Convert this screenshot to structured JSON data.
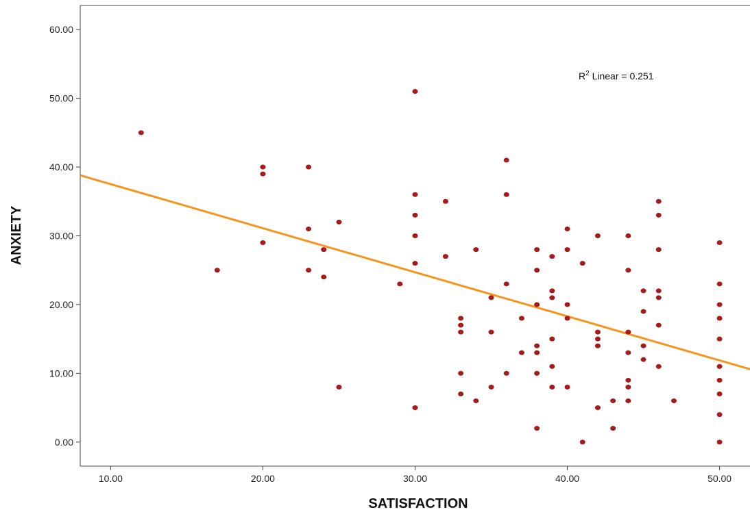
{
  "chart_data": {
    "type": "scatter",
    "xlabel": "SATISFACTION",
    "ylabel": "ANXIETY",
    "xlim": [
      8,
      52
    ],
    "ylim": [
      -3.5,
      63.5
    ],
    "x_ticks": [
      "10.00",
      "20.00",
      "30.00",
      "40.00",
      "50.00"
    ],
    "y_ticks": [
      "0.00",
      "10.00",
      "20.00",
      "30.00",
      "40.00",
      "50.00",
      "60.00"
    ],
    "annotation": {
      "prefix": "R",
      "sup": "2",
      "suffix": " Linear = 0.251"
    },
    "fit_line": {
      "x": [
        8,
        52
      ],
      "y": [
        38.8,
        10.6
      ]
    },
    "points": [
      [
        12,
        45
      ],
      [
        17,
        25
      ],
      [
        20,
        40
      ],
      [
        20,
        39
      ],
      [
        20,
        29
      ],
      [
        23,
        40
      ],
      [
        23,
        31
      ],
      [
        23,
        25
      ],
      [
        24,
        28
      ],
      [
        24,
        24
      ],
      [
        25,
        32
      ],
      [
        25,
        8
      ],
      [
        29,
        23
      ],
      [
        30,
        51
      ],
      [
        30,
        36
      ],
      [
        30,
        33
      ],
      [
        30,
        30
      ],
      [
        30,
        26
      ],
      [
        30,
        5
      ],
      [
        32,
        35
      ],
      [
        32,
        27
      ],
      [
        33,
        18
      ],
      [
        33,
        17
      ],
      [
        33,
        16
      ],
      [
        33,
        10
      ],
      [
        33,
        7
      ],
      [
        34,
        28
      ],
      [
        34,
        6
      ],
      [
        35,
        21
      ],
      [
        35,
        16
      ],
      [
        35,
        8
      ],
      [
        36,
        41
      ],
      [
        36,
        36
      ],
      [
        36,
        23
      ],
      [
        36,
        10
      ],
      [
        37,
        18
      ],
      [
        37,
        13
      ],
      [
        38,
        28
      ],
      [
        38,
        25
      ],
      [
        38,
        20
      ],
      [
        38,
        14
      ],
      [
        38,
        13
      ],
      [
        38,
        10
      ],
      [
        38,
        2
      ],
      [
        39,
        27
      ],
      [
        39,
        22
      ],
      [
        39,
        21
      ],
      [
        39,
        15
      ],
      [
        39,
        11
      ],
      [
        39,
        8
      ],
      [
        40,
        31
      ],
      [
        40,
        28
      ],
      [
        40,
        20
      ],
      [
        40,
        18
      ],
      [
        40,
        8
      ],
      [
        41,
        26
      ],
      [
        41,
        0
      ],
      [
        42,
        30
      ],
      [
        42,
        16
      ],
      [
        42,
        15
      ],
      [
        42,
        14
      ],
      [
        42,
        5
      ],
      [
        43,
        6
      ],
      [
        43,
        2
      ],
      [
        44,
        30
      ],
      [
        44,
        25
      ],
      [
        44,
        16
      ],
      [
        44,
        13
      ],
      [
        44,
        9
      ],
      [
        44,
        8
      ],
      [
        44,
        6
      ],
      [
        45,
        22
      ],
      [
        45,
        19
      ],
      [
        45,
        14
      ],
      [
        45,
        12
      ],
      [
        46,
        35
      ],
      [
        46,
        33
      ],
      [
        46,
        28
      ],
      [
        46,
        22
      ],
      [
        46,
        21
      ],
      [
        46,
        17
      ],
      [
        46,
        11
      ],
      [
        47,
        6
      ],
      [
        50,
        29
      ],
      [
        50,
        23
      ],
      [
        50,
        20
      ],
      [
        50,
        18
      ],
      [
        50,
        15
      ],
      [
        50,
        11
      ],
      [
        50,
        9
      ],
      [
        50,
        7
      ],
      [
        50,
        4
      ],
      [
        50,
        0
      ]
    ],
    "colors": {
      "points": "#a31b1b",
      "fit_line": "#f7941d",
      "axis": "#444444"
    },
    "grid": false,
    "legend": "none"
  }
}
